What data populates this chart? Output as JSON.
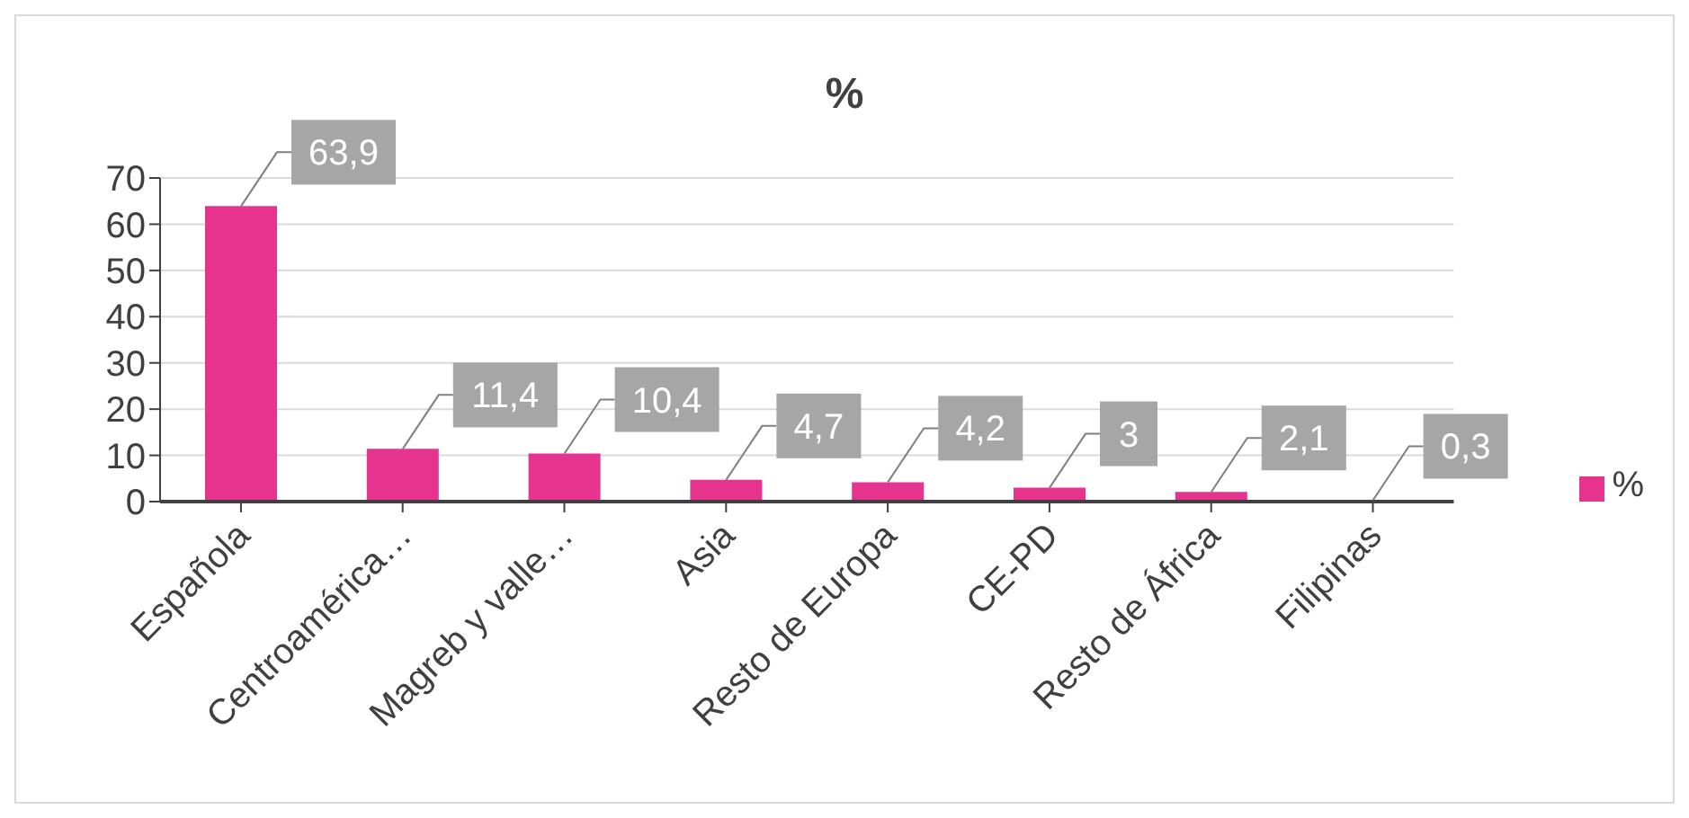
{
  "chart_data": {
    "type": "bar",
    "title": "%",
    "categories": [
      "Española",
      "Centroamérica…",
      "Magreb y valle…",
      "Asia",
      "Resto de Europa",
      "CE-PD",
      "Resto de África",
      "Filipinas"
    ],
    "series": [
      {
        "name": "%",
        "color": "#e5338e",
        "values": [
          63.9,
          11.4,
          10.4,
          4.7,
          4.2,
          3,
          2.1,
          0.3
        ],
        "value_labels": [
          "63,9",
          "11,4",
          "10,4",
          "4,7",
          "4,2",
          "3",
          "2,1",
          "0,3"
        ]
      }
    ],
    "ylim": [
      0,
      70
    ],
    "yticks": [
      0,
      10,
      20,
      30,
      40,
      50,
      60,
      70
    ],
    "grid": "y",
    "legend": "right"
  }
}
